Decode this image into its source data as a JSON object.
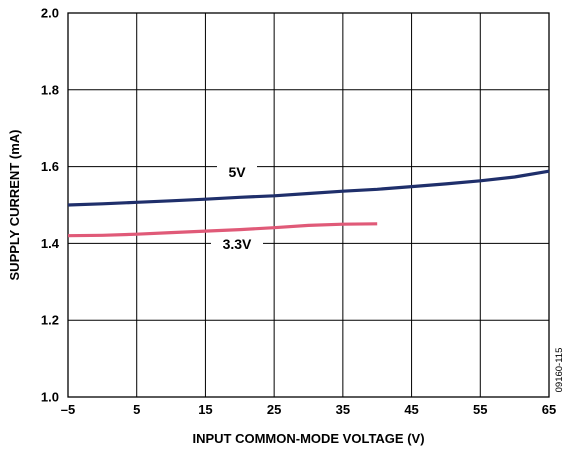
{
  "chart_data": {
    "type": "line",
    "xlabel": "INPUT COMMON-MODE VOLTAGE (V)",
    "ylabel": "SUPPLY CURRENT (mA)",
    "xlim": [
      -5,
      65
    ],
    "ylim": [
      1.0,
      2.0
    ],
    "x_ticks": [
      -5,
      5,
      15,
      25,
      35,
      45,
      55,
      65
    ],
    "x_tick_labels": [
      "–5",
      "5",
      "15",
      "25",
      "35",
      "45",
      "55",
      "65"
    ],
    "y_ticks": [
      1.0,
      1.2,
      1.4,
      1.6,
      1.8,
      2.0
    ],
    "y_tick_labels": [
      "1.0",
      "1.2",
      "1.4",
      "1.6",
      "1.8",
      "2.0"
    ],
    "grid": true,
    "legend": "inline labels",
    "figure_id": "09160-115",
    "series": [
      {
        "name": "5V",
        "color": "#1f2f6b",
        "x": [
          -5,
          0,
          5,
          10,
          15,
          20,
          25,
          30,
          35,
          40,
          45,
          50,
          55,
          60,
          65
        ],
        "y": [
          1.5,
          1.503,
          1.507,
          1.511,
          1.515,
          1.52,
          1.524,
          1.53,
          1.536,
          1.541,
          1.548,
          1.555,
          1.563,
          1.573,
          1.588
        ]
      },
      {
        "name": "3.3V",
        "color": "#e05a78",
        "x": [
          -5,
          0,
          5,
          10,
          15,
          20,
          25,
          30,
          35,
          40
        ],
        "y": [
          1.42,
          1.421,
          1.424,
          1.428,
          1.432,
          1.436,
          1.441,
          1.447,
          1.45,
          1.451
        ]
      }
    ]
  }
}
